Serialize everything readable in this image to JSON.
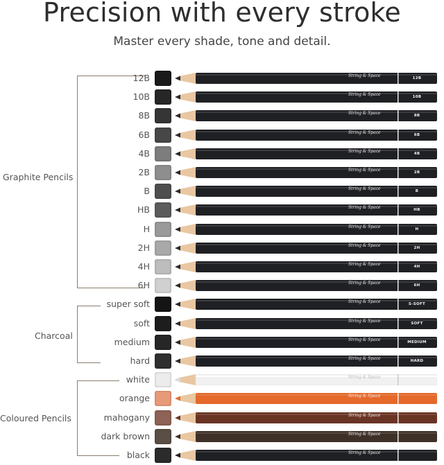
{
  "header": {
    "title": "Precision with every stroke",
    "subtitle": "Master every shade, tone and detail."
  },
  "brand_text": "String & Space",
  "groups": [
    {
      "label": "Graphite Pencils"
    },
    {
      "label": "Charcoal"
    },
    {
      "label": "Coloured Pencils"
    }
  ],
  "pencils": [
    {
      "label": "12B",
      "grade": "12B",
      "group": "Graphite Pencils",
      "body_color": "#1f2024",
      "swatch_color": "#1a1a1a"
    },
    {
      "label": "10B",
      "grade": "10B",
      "group": "Graphite Pencils",
      "body_color": "#1f2024",
      "swatch_color": "#262626"
    },
    {
      "label": "8B",
      "grade": "8B",
      "group": "Graphite Pencils",
      "body_color": "#1f2024",
      "swatch_color": "#353535"
    },
    {
      "label": "6B",
      "grade": "6B",
      "group": "Graphite Pencils",
      "body_color": "#1f2024",
      "swatch_color": "#474747"
    },
    {
      "label": "4B",
      "grade": "4B",
      "group": "Graphite Pencils",
      "body_color": "#1f2024",
      "swatch_color": "#7d7d7d"
    },
    {
      "label": "2B",
      "grade": "2B",
      "group": "Graphite Pencils",
      "body_color": "#1f2024",
      "swatch_color": "#8e8e8e"
    },
    {
      "label": "B",
      "grade": "B",
      "group": "Graphite Pencils",
      "body_color": "#1f2024",
      "swatch_color": "#4f4f4f"
    },
    {
      "label": "HB",
      "grade": "HB",
      "group": "Graphite Pencils",
      "body_color": "#1f2024",
      "swatch_color": "#5c5c5c"
    },
    {
      "label": "H",
      "grade": "H",
      "group": "Graphite Pencils",
      "body_color": "#1f2024",
      "swatch_color": "#9a9a9a"
    },
    {
      "label": "2H",
      "grade": "2H",
      "group": "Graphite Pencils",
      "body_color": "#1f2024",
      "swatch_color": "#a9a9a9"
    },
    {
      "label": "4H",
      "grade": "4H",
      "group": "Graphite Pencils",
      "body_color": "#1f2024",
      "swatch_color": "#bdbdbd"
    },
    {
      "label": "6H",
      "grade": "6H",
      "group": "Graphite Pencils",
      "body_color": "#1f2024",
      "swatch_color": "#d0d0d0"
    },
    {
      "label": "super soft",
      "grade": "S-SOFT",
      "group": "Charcoal",
      "body_color": "#1f2024",
      "swatch_color": "#141414"
    },
    {
      "label": "soft",
      "grade": "SOFT",
      "group": "Charcoal",
      "body_color": "#1f2024",
      "swatch_color": "#1d1d1d"
    },
    {
      "label": "medium",
      "grade": "MEDIUM",
      "group": "Charcoal",
      "body_color": "#1f2024",
      "swatch_color": "#262626"
    },
    {
      "label": "hard",
      "grade": "HARD",
      "group": "Charcoal",
      "body_color": "#1f2024",
      "swatch_color": "#2f2f2f"
    },
    {
      "label": "white",
      "grade": "",
      "group": "Coloured Pencils",
      "body_color": "#f1f1f1",
      "swatch_color": "#ececec"
    },
    {
      "label": "orange",
      "grade": "",
      "group": "Coloured Pencils",
      "body_color": "#e4692b",
      "swatch_color": "#e89a78"
    },
    {
      "label": "mahogany",
      "grade": "",
      "group": "Coloured Pencils",
      "body_color": "#6a3424",
      "swatch_color": "#8e6256"
    },
    {
      "label": "dark brown",
      "grade": "",
      "group": "Coloured Pencils",
      "body_color": "#3f3027",
      "swatch_color": "#5b4e45"
    },
    {
      "label": "black",
      "grade": "",
      "group": "Coloured Pencils",
      "body_color": "#1f2024",
      "swatch_color": "#2b2b2b"
    }
  ],
  "colors": {
    "bracket": "#8a7d6b",
    "wood": "#e9c7a3",
    "lead": "#2a2a2a"
  }
}
